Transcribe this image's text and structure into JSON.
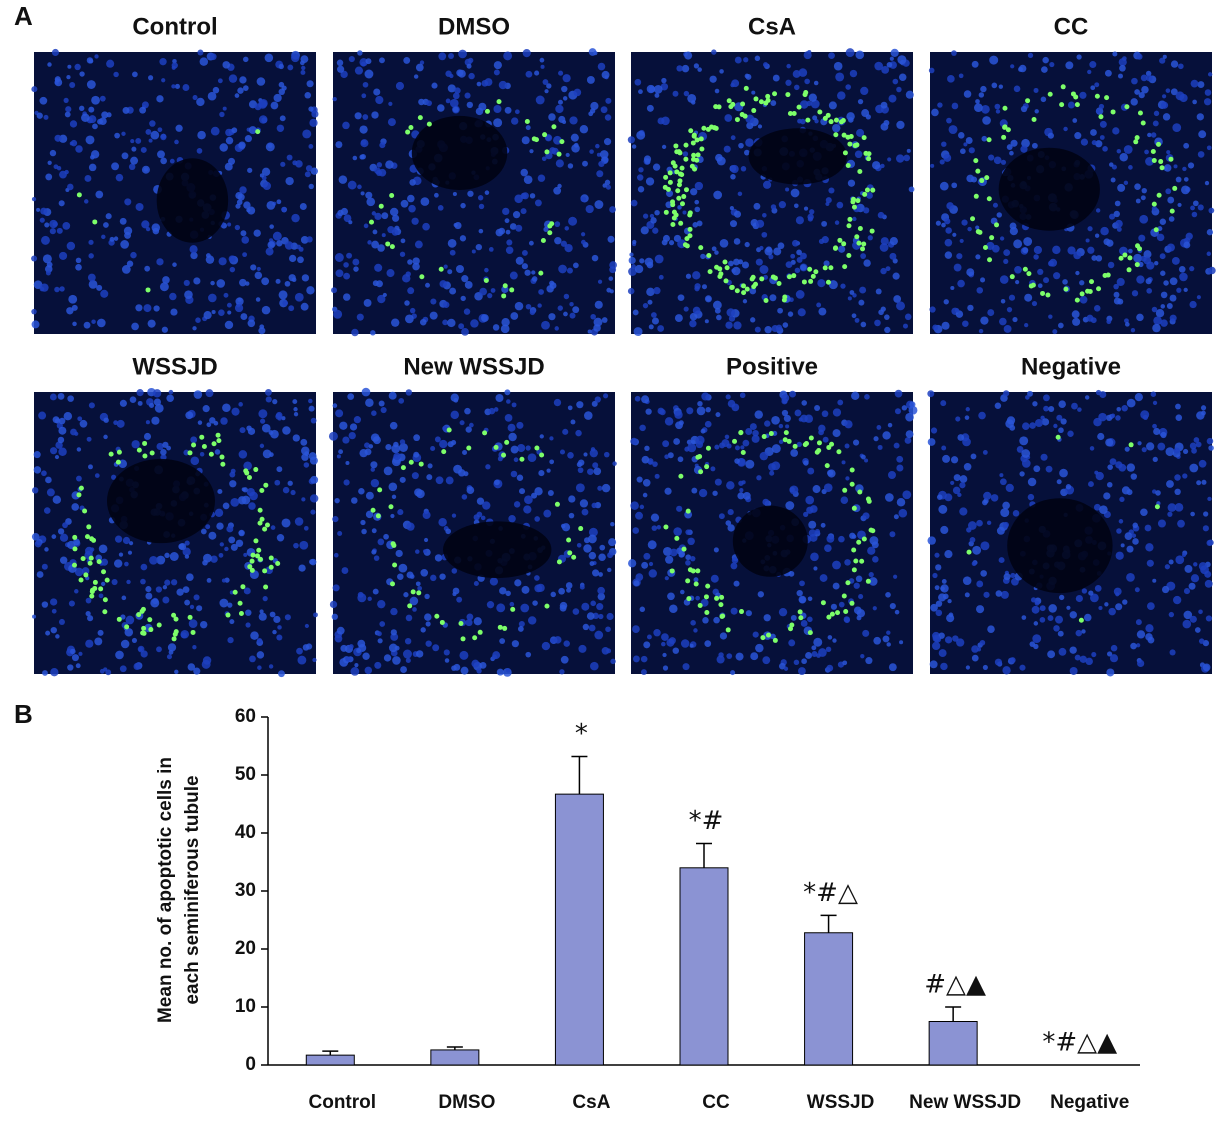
{
  "panel_a": {
    "label": "A",
    "titles": [
      "Control",
      "DMSO",
      "CsA",
      "CC",
      "WSSJD",
      "New  WSSJD",
      "Positive",
      "Negative"
    ]
  },
  "panel_b": {
    "label": "B"
  },
  "chart_data": {
    "type": "bar",
    "y_label": [
      "Mean no. of apoptotic cells in",
      "each seminiferous tubule"
    ],
    "categories": [
      "Control",
      "DMSO",
      "CsA",
      "CC",
      "WSSJD",
      "New WSSJD",
      "Negative"
    ],
    "values": [
      1.7,
      2.6,
      46.7,
      34,
      22.8,
      7.5,
      0
    ],
    "errors": [
      0.7,
      0.5,
      6.5,
      4.2,
      3,
      2.5,
      0
    ],
    "annotations": [
      null,
      null,
      "*",
      "*#",
      "*#△",
      "#△▲",
      "*#△▲"
    ],
    "color": "#8b93d3",
    "ylim": [
      0,
      60
    ],
    "yticks": [
      0,
      10,
      20,
      30,
      40,
      50,
      60
    ],
    "grid": false
  }
}
